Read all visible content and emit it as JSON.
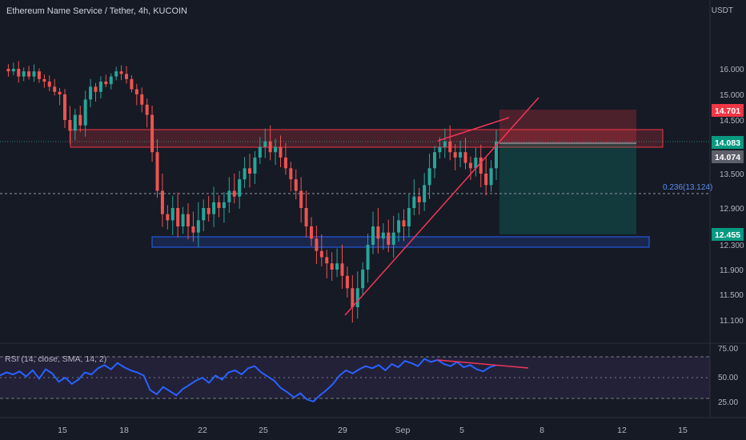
{
  "header": {
    "symbol_title": "Ethereum Name Service / Tether, 4h, KUCOIN",
    "price_unit": "USDT",
    "rsi_title": "RSI (14, close, SMA, 14, 2)"
  },
  "colors": {
    "background": "#161a25",
    "up_candle": "#26a69a",
    "down_candle": "#ef5350",
    "rsi_line": "#2962ff",
    "drawing_line": "#f23658",
    "support_box": "#2962ff",
    "resistance_box": "#f23645"
  },
  "price_axis": {
    "ticks": [
      "16.000",
      "15.000",
      "14.500",
      "13.500",
      "12.900",
      "12.300",
      "11.900",
      "11.500",
      "11.100"
    ]
  },
  "rsi_axis": {
    "ticks": [
      "75.00",
      "50.00",
      "25.00"
    ]
  },
  "x_axis": {
    "ticks": [
      "15",
      "18",
      "22",
      "25",
      "29",
      "Sep",
      "5",
      "8",
      "12",
      "15"
    ]
  },
  "price_tags": {
    "stop": "14.701",
    "current": "14.083",
    "entry": "14.074",
    "target": "12.455"
  },
  "fib_label": "0.236(13.124)",
  "chart_data": {
    "type": "candlestick",
    "symbol": "ENS/USDT",
    "timeframe": "4h",
    "exchange": "KUCOIN",
    "x_dates": [
      "15",
      "18",
      "22",
      "25",
      "29",
      "Sep",
      "5",
      "8",
      "12",
      "15"
    ],
    "price_range": [
      11.0,
      16.3
    ],
    "price_series": [
      16.0,
      15.9,
      16.0,
      15.7,
      15.9,
      15.7,
      15.9,
      15.6,
      15.5,
      15.3,
      15.1,
      15.0,
      14.5,
      14.3,
      14.6,
      14.4,
      14.9,
      15.3,
      15.1,
      15.5,
      15.4,
      15.7,
      15.9,
      15.8,
      15.6,
      15.2,
      15.0,
      14.8,
      14.6,
      13.9,
      13.2,
      12.8,
      12.7,
      12.9,
      12.6,
      12.8,
      12.6,
      12.5,
      12.7,
      12.9,
      12.8,
      13.0,
      12.9,
      13.0,
      13.2,
      13.1,
      13.4,
      13.6,
      13.5,
      13.8,
      14.0,
      14.1,
      13.9,
      14.0,
      13.8,
      13.6,
      13.4,
      13.2,
      12.9,
      12.6,
      12.4,
      12.2,
      12.1,
      12.0,
      11.9,
      12.0,
      11.8,
      11.6,
      11.3,
      11.6,
      11.9,
      12.3,
      12.6,
      12.4,
      12.5,
      12.3,
      12.5,
      12.7,
      12.6,
      12.9,
      13.1,
      13.0,
      13.3,
      13.6,
      13.9,
      14.0,
      14.1,
      13.9,
      13.8,
      13.9,
      13.7,
      13.6,
      13.8,
      13.5,
      13.3,
      13.6,
      14.1
    ],
    "rsi_range": [
      20,
      80
    ],
    "rsi_levels": [
      70,
      50,
      30
    ],
    "rsi_series": [
      52,
      55,
      53,
      56,
      51,
      57,
      49,
      58,
      54,
      46,
      50,
      44,
      48,
      55,
      53,
      59,
      62,
      58,
      64,
      60,
      57,
      55,
      52,
      38,
      34,
      41,
      37,
      33,
      39,
      43,
      47,
      50,
      45,
      52,
      48,
      55,
      57,
      53,
      59,
      61,
      55,
      51,
      47,
      40,
      36,
      31,
      35,
      29,
      27,
      33,
      38,
      44,
      52,
      57,
      54,
      58,
      61,
      59,
      62,
      57,
      63,
      60,
      66,
      64,
      61,
      68,
      65,
      67,
      63,
      61,
      65,
      60,
      62,
      58,
      56,
      60,
      62
    ],
    "levels": {
      "resistance_zone": [
        14.07,
        14.23
      ],
      "support_zone": [
        12.26,
        12.36
      ],
      "fib_0_236": 13.124,
      "stop": 14.701,
      "entry": 14.074,
      "target": 12.455,
      "current": 14.083
    },
    "grid": false,
    "legend": "none"
  }
}
